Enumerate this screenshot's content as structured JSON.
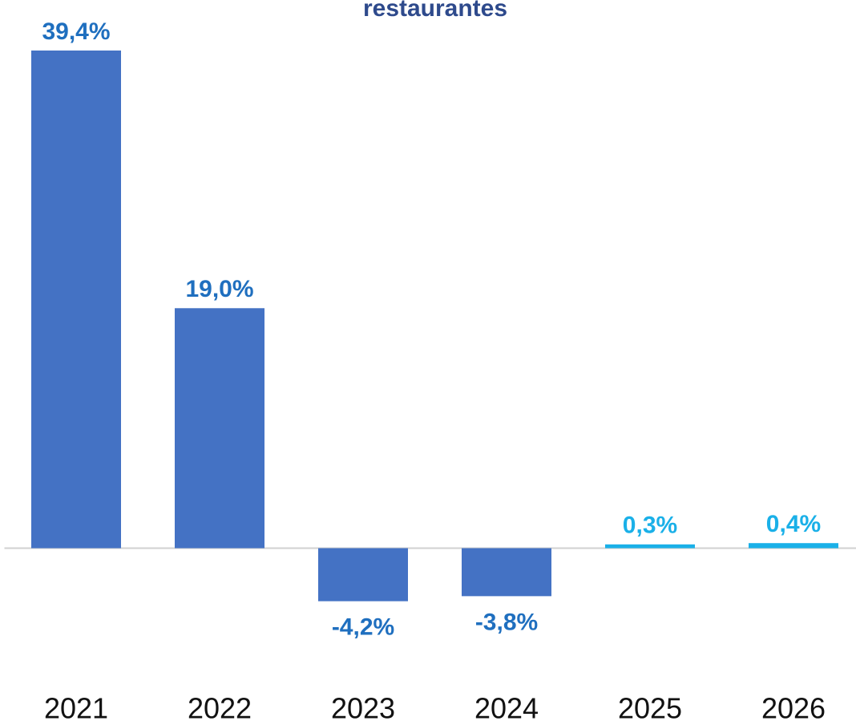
{
  "chart_data": {
    "type": "bar",
    "title": "restaurantes",
    "categories": [
      "2021",
      "2022",
      "2023",
      "2024",
      "2025",
      "2026"
    ],
    "values": [
      39.4,
      19.0,
      -4.2,
      -3.8,
      0.3,
      0.4
    ],
    "value_labels": [
      "39,4%",
      "19,0%",
      "-4,2%",
      "-3,8%",
      "0,3%",
      "0,4%"
    ],
    "colors": [
      "#4472c4",
      "#4472c4",
      "#4472c4",
      "#4472c4",
      "#1ab0e8",
      "#1ab0e8"
    ],
    "label_colors": [
      "#1f6fbf",
      "#1f6fbf",
      "#1f6fbf",
      "#1f6fbf",
      "#1ab0e8",
      "#1ab0e8"
    ],
    "ylim": [
      -14,
      43.4
    ],
    "grid": false
  }
}
